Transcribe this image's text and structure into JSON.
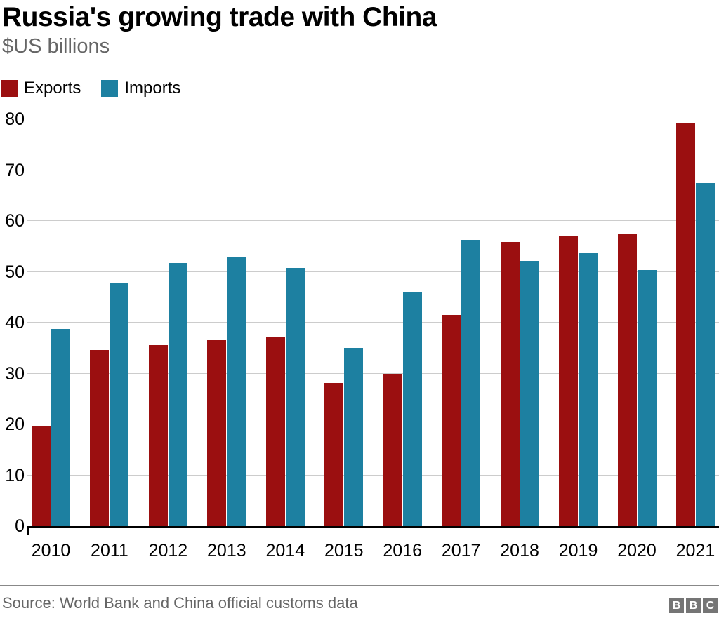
{
  "header": {
    "title": "Russia's growing trade with China",
    "subtitle": "$US billions"
  },
  "chart_data": {
    "type": "bar",
    "title": "Russia's growing trade with China",
    "subtitle": "$US billions",
    "xlabel": "",
    "ylabel": "$US billions",
    "categories": [
      "2010",
      "2011",
      "2012",
      "2013",
      "2014",
      "2015",
      "2016",
      "2017",
      "2018",
      "2019",
      "2020",
      "2021"
    ],
    "series": [
      {
        "name": "Exports",
        "color": "#9b0f10",
        "values": [
          19.7,
          34.6,
          35.6,
          36.6,
          37.2,
          28.2,
          29.9,
          41.5,
          55.8,
          57.0,
          57.5,
          79.3
        ]
      },
      {
        "name": "Imports",
        "color": "#1d80a1",
        "values": [
          38.8,
          47.8,
          51.7,
          52.9,
          50.7,
          35.0,
          46.1,
          56.3,
          52.1,
          53.7,
          50.3,
          67.4
        ]
      }
    ],
    "ylim": [
      0,
      80
    ],
    "ytick_step": 10,
    "grid": true,
    "legend_position": "top-left",
    "colors": {
      "gridline": "#cccccc",
      "axis": "#000000",
      "text": "#000000",
      "muted": "#666666"
    }
  },
  "footer": {
    "source": "Source: World Bank and China official customs data",
    "logo_letters": [
      "B",
      "B",
      "C"
    ]
  }
}
